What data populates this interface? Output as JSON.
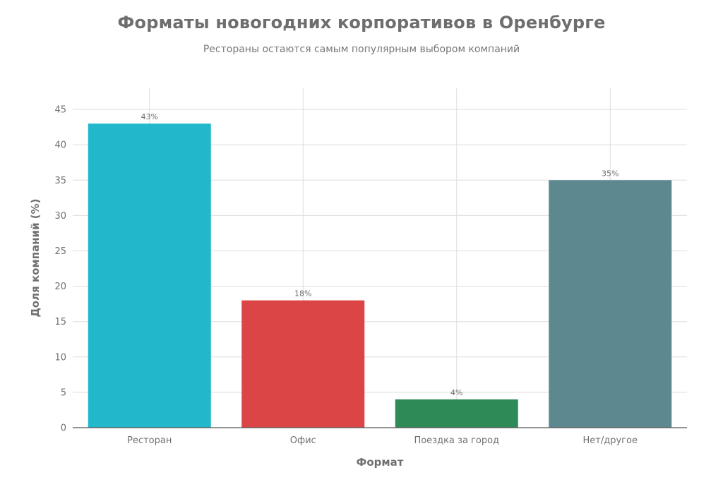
{
  "chart_data": {
    "type": "bar",
    "title": "Форматы новогодних корпоративов в Оренбурге",
    "subtitle": "Рестораны остаются самым популярным выбором компаний",
    "xlabel": "Формат",
    "ylabel": "Доля компаний (%)",
    "categories": [
      "Ресторан",
      "Офис",
      "Поездка за город",
      "Нет/другое"
    ],
    "values": [
      43,
      18,
      4,
      35
    ],
    "data_labels": [
      "43%",
      "18%",
      "4%",
      "35%"
    ],
    "colors": [
      "#22b8cc",
      "#dc4545",
      "#2e8b57",
      "#5d8890"
    ],
    "ylim": [
      0,
      48
    ],
    "yticks": [
      0,
      5,
      10,
      15,
      20,
      25,
      30,
      35,
      40,
      45
    ],
    "grid": true,
    "legend": "none"
  }
}
